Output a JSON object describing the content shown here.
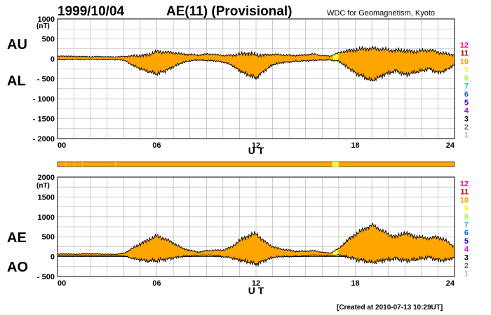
{
  "header": {
    "date": "1999/10/04",
    "title": "AE(11) (Provisional)",
    "source": "WDC for Geomagnetism, Kyoto"
  },
  "footer": {
    "created": "[Created at 2010-07-13 10:29UT]"
  },
  "colors": {
    "fill": "#ffa500",
    "highlight": "#ffff33",
    "grid": "#aaaaaa"
  },
  "legend": {
    "numbers": [
      "12",
      "11",
      "10",
      "9",
      "8",
      "7",
      "6",
      "5",
      "4",
      "3",
      "2",
      "1"
    ],
    "colors": [
      "#ff0080",
      "#cc0000",
      "#ff9900",
      "#ffff00",
      "#99ff33",
      "#00cccc",
      "#0066ff",
      "#3300cc",
      "#cc00cc",
      "#000000",
      "#666666",
      "#bbbbbb"
    ]
  },
  "chart_data": [
    {
      "type": "area",
      "name": "AU/AL",
      "labels": {
        "upper": "AU",
        "lower": "AL",
        "unit": "(nT)",
        "xlabel": "U T"
      },
      "ylim": [
        -2000,
        1000
      ],
      "yticks": [
        "1000",
        "500",
        "0",
        "- 500",
        "- 1000",
        "- 1500",
        "- 2000"
      ],
      "ytick_values": [
        1000,
        500,
        0,
        -500,
        -1000,
        -1500,
        -2000
      ],
      "xlim": [
        0,
        24
      ],
      "xticks": [
        "00",
        "06",
        "12",
        "18",
        "24"
      ],
      "xtick_values": [
        0,
        6,
        12,
        18,
        24
      ],
      "x": [
        0,
        0.5,
        1,
        1.5,
        2,
        2.5,
        3,
        3.5,
        4,
        4.5,
        5,
        5.5,
        6,
        6.5,
        7,
        7.5,
        8,
        8.5,
        9,
        9.5,
        10,
        10.5,
        11,
        11.5,
        12,
        12.5,
        13,
        13.5,
        14,
        14.5,
        15,
        15.5,
        16,
        16.5,
        17,
        17.5,
        18,
        18.5,
        19,
        19.5,
        20,
        20.5,
        21,
        21.5,
        22,
        22.5,
        23,
        23.5,
        24
      ],
      "series": [
        {
          "name": "AU",
          "values": [
            60,
            70,
            60,
            60,
            50,
            60,
            50,
            50,
            60,
            70,
            80,
            100,
            180,
            170,
            150,
            120,
            110,
            90,
            120,
            110,
            80,
            90,
            110,
            140,
            100,
            90,
            110,
            100,
            90,
            80,
            100,
            120,
            80,
            70,
            150,
            200,
            220,
            250,
            260,
            240,
            220,
            210,
            200,
            180,
            200,
            220,
            170,
            120,
            100
          ]
        },
        {
          "name": "AL",
          "values": [
            -20,
            -20,
            -10,
            -20,
            -10,
            -20,
            -20,
            -20,
            -30,
            -150,
            -250,
            -320,
            -380,
            -300,
            -200,
            -100,
            -50,
            -30,
            -40,
            -50,
            -80,
            -150,
            -300,
            -400,
            -480,
            -300,
            -150,
            -100,
            -80,
            -60,
            -50,
            -40,
            -30,
            -30,
            -60,
            -200,
            -350,
            -450,
            -550,
            -450,
            -350,
            -300,
            -400,
            -350,
            -300,
            -250,
            -350,
            -280,
            -150
          ]
        }
      ]
    },
    {
      "type": "area",
      "name": "AE/AO",
      "labels": {
        "upper": "AE",
        "lower": "AO",
        "unit": "(nT)",
        "xlabel": "U T"
      },
      "ylim": [
        -500,
        2000
      ],
      "yticks": [
        "2000",
        "1500",
        "1000",
        "500",
        "0",
        "- 500"
      ],
      "ytick_values": [
        2000,
        1500,
        1000,
        500,
        0,
        -500
      ],
      "xlim": [
        0,
        24
      ],
      "xticks": [
        "00",
        "06",
        "12",
        "18",
        "24"
      ],
      "xtick_values": [
        0,
        6,
        12,
        18,
        24
      ],
      "x": [
        0,
        0.5,
        1,
        1.5,
        2,
        2.5,
        3,
        3.5,
        4,
        4.5,
        5,
        5.5,
        6,
        6.5,
        7,
        7.5,
        8,
        8.5,
        9,
        9.5,
        10,
        10.5,
        11,
        11.5,
        12,
        12.5,
        13,
        13.5,
        14,
        14.5,
        15,
        15.5,
        16,
        16.5,
        17,
        17.5,
        18,
        18.5,
        19,
        19.5,
        20,
        20.5,
        21,
        21.5,
        22,
        22.5,
        23,
        23.5,
        24
      ],
      "series": [
        {
          "name": "AE",
          "values": [
            60,
            70,
            60,
            70,
            70,
            70,
            60,
            60,
            80,
            200,
            320,
            420,
            520,
            450,
            340,
            220,
            160,
            110,
            150,
            160,
            160,
            240,
            400,
            520,
            580,
            380,
            250,
            190,
            160,
            130,
            140,
            150,
            110,
            90,
            200,
            400,
            560,
            680,
            800,
            680,
            560,
            500,
            600,
            520,
            480,
            460,
            500,
            390,
            250
          ]
        },
        {
          "name": "AO",
          "values": [
            20,
            20,
            20,
            20,
            20,
            20,
            20,
            20,
            20,
            -40,
            -80,
            -110,
            -100,
            -70,
            -30,
            0,
            20,
            30,
            40,
            30,
            0,
            -30,
            -90,
            -130,
            -190,
            -100,
            -20,
            0,
            5,
            10,
            20,
            40,
            25,
            20,
            40,
            0,
            -60,
            -100,
            -150,
            -110,
            -70,
            -45,
            -100,
            -85,
            -50,
            -15,
            -90,
            -80,
            -25
          ]
        }
      ],
      "highlight_range": [
        16.6,
        17.0
      ]
    }
  ],
  "status_bar": {
    "highlight_ranges": [
      [
        16.6,
        17.0
      ]
    ]
  }
}
